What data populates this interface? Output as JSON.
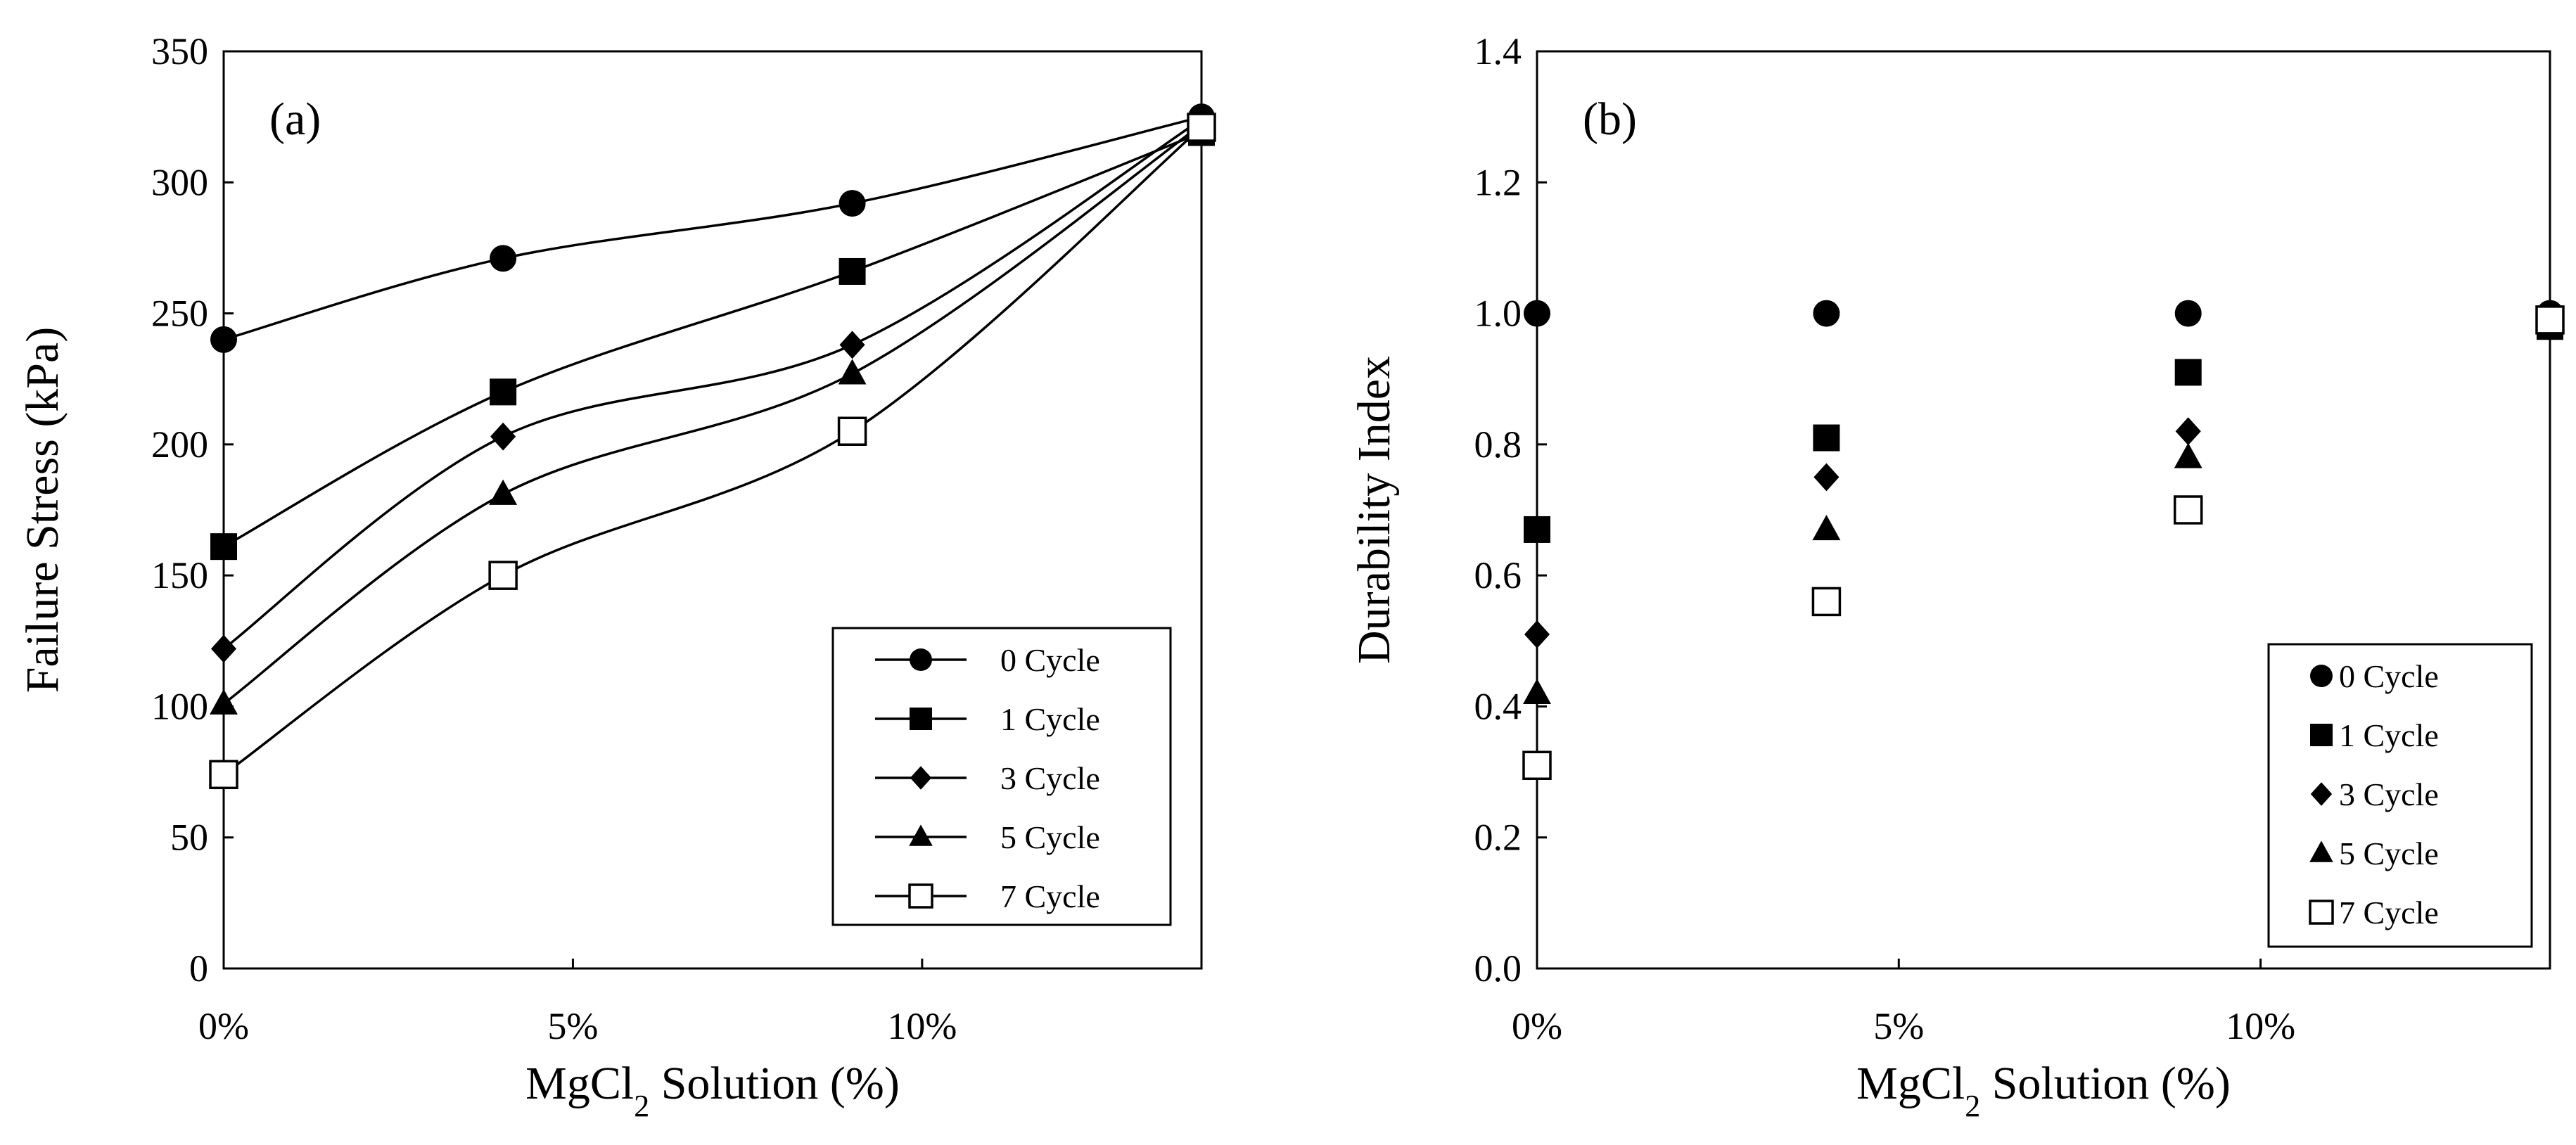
{
  "chart_data": [
    {
      "panel": "(a)",
      "type": "line",
      "xlabel_main": "MgCl",
      "xlabel_sub": "2",
      "xlabel_rest": " Solution (%)",
      "ylabel": "Failure Stress (kPa)",
      "xlim": [
        0,
        14
      ],
      "ylim": [
        0,
        350
      ],
      "xticks": [
        0,
        5,
        10
      ],
      "xtick_labels": [
        "0%",
        "5%",
        "10%"
      ],
      "yticks": [
        0,
        50,
        100,
        150,
        200,
        250,
        300,
        350
      ],
      "ytick_labels": [
        "0",
        "50",
        "100",
        "150",
        "200",
        "250",
        "300",
        "350"
      ],
      "x": [
        0,
        4,
        9,
        14
      ],
      "legend_position": "bottom-right",
      "series": [
        {
          "name": "0 Cycle",
          "marker": "circle",
          "values": [
            240,
            271,
            292,
            325
          ]
        },
        {
          "name": "1 Cycle",
          "marker": "square",
          "values": [
            161,
            220,
            266,
            319
          ]
        },
        {
          "name": "3 Cycle",
          "marker": "diamond",
          "values": [
            122,
            203,
            238,
            324
          ]
        },
        {
          "name": "5 Cycle",
          "marker": "triangle",
          "values": [
            101,
            181,
            227,
            322
          ]
        },
        {
          "name": "7 Cycle",
          "marker": "open-square",
          "values": [
            74,
            150,
            205,
            321
          ]
        }
      ]
    },
    {
      "panel": "(b)",
      "type": "scatter",
      "xlabel_main": "MgCl",
      "xlabel_sub": "2",
      "xlabel_rest": " Solution (%)",
      "ylabel": "Durability Index",
      "xlim": [
        0,
        14
      ],
      "ylim": [
        0,
        1.4
      ],
      "xticks": [
        0,
        5,
        10
      ],
      "xtick_labels": [
        "0%",
        "5%",
        "10%"
      ],
      "yticks": [
        0,
        0.2,
        0.4,
        0.6,
        0.8,
        1.0,
        1.2,
        1.4
      ],
      "ytick_labels": [
        "0.0",
        "0.2",
        "0.4",
        "0.6",
        "0.8",
        "1.0",
        "1.2",
        "1.4"
      ],
      "x": [
        0,
        4,
        9,
        14
      ],
      "legend_position": "bottom-right",
      "series": [
        {
          "name": "0 Cycle",
          "marker": "circle",
          "values": [
            1.0,
            1.0,
            1.0,
            1.0
          ]
        },
        {
          "name": "1 Cycle",
          "marker": "square",
          "values": [
            0.67,
            0.81,
            0.91,
            0.98
          ]
        },
        {
          "name": "3 Cycle",
          "marker": "diamond",
          "values": [
            0.51,
            0.75,
            0.82,
            0.99
          ]
        },
        {
          "name": "5 Cycle",
          "marker": "triangle",
          "values": [
            0.42,
            0.67,
            0.78,
            0.99
          ]
        },
        {
          "name": "7 Cycle",
          "marker": "open-square",
          "values": [
            0.31,
            0.56,
            0.7,
            0.99
          ]
        }
      ]
    }
  ]
}
